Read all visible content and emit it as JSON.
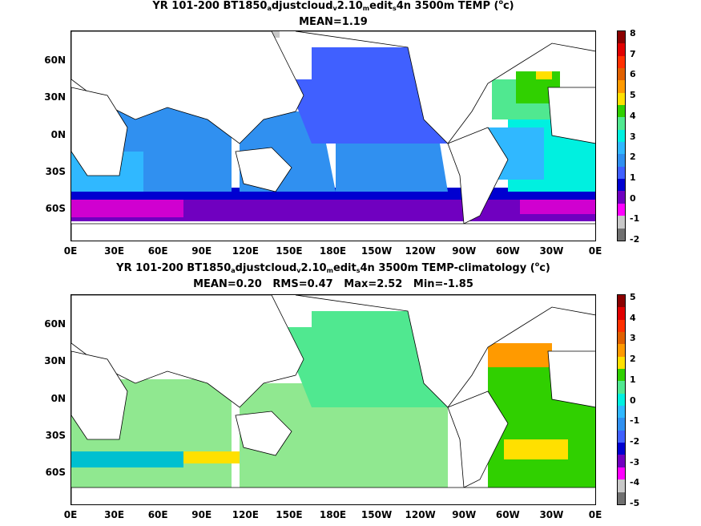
{
  "panels": [
    {
      "title_parts": [
        "YR 101-200 BT1850",
        "a",
        "djustcloud",
        "v",
        "2.10",
        "m",
        "edit",
        "s",
        "4n 3500m TEMP (",
        "o",
        "c)"
      ],
      "stats": "MEAN=1.19",
      "colorbar": {
        "labels": [
          "8",
          "7",
          "6",
          "5",
          "4",
          "3",
          "2",
          "1",
          "0",
          "-1",
          "-2"
        ],
        "colors": [
          "#8b0000",
          "#e00000",
          "#ff3000",
          "#e06000",
          "#ff9a00",
          "#ffe000",
          "#30d000",
          "#50e890",
          "#00f0e0",
          "#30b8ff",
          "#3090f0",
          "#4060ff",
          "#0000d0",
          "#7000c0",
          "#ff00ff",
          "#c8c8c8",
          "#707070"
        ]
      }
    },
    {
      "title_parts": [
        "YR 101-200 BT1850",
        "a",
        "djustcloud",
        "v",
        "2.10",
        "m",
        "edit",
        "s",
        "4n 3500m TEMP-climatology (",
        "o",
        "c)"
      ],
      "stats": "MEAN=0.20   RMS=0.47   Max=2.52   Min=-1.85",
      "colorbar": {
        "labels": [
          "5",
          "4",
          "3",
          "2",
          "1",
          "0",
          "-1",
          "-2",
          "-3",
          "-4",
          "-5"
        ],
        "colors": [
          "#8b0000",
          "#e00000",
          "#ff3000",
          "#e06000",
          "#ff9a00",
          "#ffe000",
          "#30d000",
          "#50e890",
          "#00f0e0",
          "#30b8ff",
          "#3090f0",
          "#4060ff",
          "#0000d0",
          "#7000c0",
          "#ff00ff",
          "#c8c8c8",
          "#707070"
        ]
      }
    }
  ],
  "map": {
    "lat_labels": [
      "60N",
      "30N",
      "0N",
      "30S",
      "60S"
    ],
    "lon_labels": [
      "0E",
      "30E",
      "60E",
      "90E",
      "120E",
      "150E",
      "180E",
      "150W",
      "120W",
      "90W",
      "60W",
      "30W",
      "0E"
    ]
  },
  "colors": {
    "land": "#ffffff",
    "coast": "#000000"
  }
}
